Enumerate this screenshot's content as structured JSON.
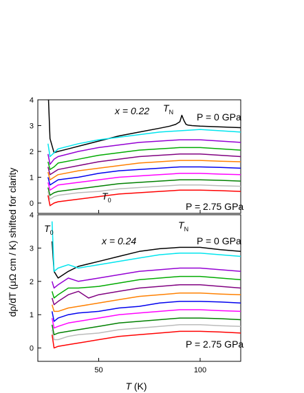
{
  "chart_data": {
    "type": "line",
    "ylabel": "dρ/dT (μΩ cm / K) shifted for clarity",
    "xlabel": "T (K)",
    "xlim": [
      20,
      120
    ],
    "xticks": [
      50,
      100
    ],
    "grid": false,
    "panels": [
      {
        "id": "x022",
        "ylim": [
          -0.4,
          4
        ],
        "yticks": [
          0,
          1,
          2,
          3,
          4
        ],
        "annotations": {
          "composition": "x = 0.22",
          "pressure_top": "P = 0 GPa",
          "pressure_bottom": "P = 2.75 GPa",
          "neel": "T_N",
          "structural": "T_0"
        },
        "series": [
          {
            "color": "#000000",
            "offset": 2.0,
            "x": [
              25,
              26,
              28,
              30,
              35,
              40,
              50,
              60,
              70,
              80,
              85,
              88,
              90,
              91,
              92,
              93,
              94,
              96,
              100,
              110,
              120
            ],
            "y": [
              2.5,
              0.5,
              -0.05,
              0.0,
              0.1,
              0.2,
              0.4,
              0.6,
              0.75,
              0.9,
              0.98,
              1.05,
              1.15,
              1.4,
              1.2,
              1.05,
              1.02,
              1.0,
              0.98,
              0.95,
              0.92
            ]
          },
          {
            "color": "#00e5ee",
            "offset": 1.8,
            "x": [
              25,
              26,
              28,
              30,
              40,
              50,
              60,
              70,
              80,
              90,
              100,
              110,
              120
            ],
            "y": [
              0.5,
              0.0,
              0.15,
              0.3,
              0.5,
              0.65,
              0.75,
              0.85,
              0.95,
              1.0,
              1.05,
              1.0,
              0.95
            ]
          },
          {
            "color": "#9400d3",
            "offset": 1.5,
            "x": [
              25,
              26,
              28,
              30,
              40,
              50,
              60,
              70,
              80,
              90,
              100,
              110,
              120
            ],
            "y": [
              0.4,
              0.0,
              0.2,
              0.3,
              0.5,
              0.65,
              0.75,
              0.85,
              0.9,
              0.95,
              0.95,
              0.9,
              0.85
            ]
          },
          {
            "color": "#00aa00",
            "offset": 1.3,
            "x": [
              25,
              26,
              28,
              30,
              40,
              50,
              60,
              70,
              80,
              90,
              100,
              110,
              120
            ],
            "y": [
              0.3,
              0.0,
              0.1,
              0.25,
              0.4,
              0.55,
              0.65,
              0.75,
              0.8,
              0.85,
              0.85,
              0.8,
              0.75
            ]
          },
          {
            "color": "#800080",
            "offset": 1.1,
            "x": [
              25,
              26,
              28,
              30,
              40,
              50,
              60,
              70,
              80,
              90,
              100,
              110,
              120
            ],
            "y": [
              0.3,
              0.0,
              0.1,
              0.2,
              0.35,
              0.5,
              0.6,
              0.7,
              0.75,
              0.8,
              0.8,
              0.75,
              0.7
            ]
          },
          {
            "color": "#ff8000",
            "offset": 0.9,
            "x": [
              25,
              26,
              28,
              30,
              40,
              50,
              60,
              70,
              80,
              90,
              100,
              110,
              120
            ],
            "y": [
              0.3,
              0.0,
              0.1,
              0.2,
              0.35,
              0.45,
              0.55,
              0.65,
              0.7,
              0.75,
              0.75,
              0.72,
              0.7
            ]
          },
          {
            "color": "#0000ee",
            "offset": 0.7,
            "x": [
              25,
              26,
              28,
              30,
              40,
              50,
              60,
              70,
              80,
              90,
              100,
              110,
              120
            ],
            "y": [
              0.3,
              0.0,
              0.1,
              0.2,
              0.3,
              0.45,
              0.55,
              0.6,
              0.65,
              0.7,
              0.7,
              0.68,
              0.65
            ]
          },
          {
            "color": "#ff00ff",
            "offset": 0.5,
            "x": [
              25,
              26,
              28,
              30,
              40,
              50,
              60,
              70,
              80,
              90,
              100,
              110,
              120
            ],
            "y": [
              0.3,
              0.0,
              0.1,
              0.2,
              0.3,
              0.4,
              0.5,
              0.55,
              0.6,
              0.65,
              0.65,
              0.62,
              0.6
            ]
          },
          {
            "color": "#008000",
            "offset": 0.3,
            "x": [
              25,
              26,
              28,
              30,
              40,
              50,
              60,
              70,
              80,
              90,
              100,
              110,
              120
            ],
            "y": [
              0.3,
              0.0,
              0.1,
              0.15,
              0.25,
              0.35,
              0.45,
              0.5,
              0.55,
              0.6,
              0.6,
              0.58,
              0.55
            ]
          },
          {
            "color": "#bbbbbb",
            "offset": 0.15,
            "x": [
              25,
              26,
              28,
              30,
              40,
              50,
              60,
              70,
              80,
              90,
              100,
              110,
              120
            ],
            "y": [
              0.3,
              0.0,
              0.1,
              0.15,
              0.25,
              0.3,
              0.4,
              0.45,
              0.5,
              0.55,
              0.55,
              0.52,
              0.5
            ]
          },
          {
            "color": "#ff0000",
            "offset": 0.0,
            "x": [
              25,
              26,
              28,
              30,
              40,
              50,
              60,
              70,
              80,
              90,
              100,
              110,
              120
            ],
            "y": [
              0.3,
              -0.1,
              0.0,
              0.05,
              0.15,
              0.25,
              0.35,
              0.4,
              0.45,
              0.5,
              0.5,
              0.48,
              0.45
            ]
          }
        ]
      },
      {
        "id": "x024",
        "ylim": [
          -0.4,
          4
        ],
        "yticks": [
          0,
          1,
          2,
          3,
          4
        ],
        "annotations": {
          "composition": "x = 0.24",
          "pressure_top": "P = 0 GPa",
          "pressure_bottom": "P = 2.75 GPa",
          "neel": "T_N",
          "structural": "T_0"
        },
        "series": [
          {
            "color": "#000000",
            "offset": 2.0,
            "x": [
              27,
              28,
              30,
              35,
              40,
              50,
              60,
              70,
              80,
              90,
              100,
              110,
              120
            ],
            "y": [
              1.2,
              0.3,
              0.1,
              0.3,
              0.45,
              0.6,
              0.75,
              0.9,
              0.98,
              1.02,
              1.02,
              0.95,
              0.9
            ]
          },
          {
            "color": "#00e5ee",
            "offset": 1.8,
            "x": [
              27,
              28,
              30,
              35,
              40,
              50,
              60,
              70,
              80,
              90,
              100,
              110,
              120
            ],
            "y": [
              2.0,
              0.5,
              0.6,
              0.7,
              0.6,
              0.7,
              0.8,
              0.9,
              1.0,
              1.05,
              1.05,
              1.0,
              0.95
            ]
          },
          {
            "color": "#9400d3",
            "offset": 1.5,
            "x": [
              27,
              28,
              30,
              35,
              40,
              50,
              60,
              70,
              80,
              90,
              100,
              110,
              120
            ],
            "y": [
              0.5,
              0.3,
              0.4,
              0.6,
              0.5,
              0.6,
              0.7,
              0.8,
              0.85,
              0.9,
              0.9,
              0.85,
              0.8
            ]
          },
          {
            "color": "#00aa00",
            "offset": 1.3,
            "x": [
              27,
              28,
              30,
              35,
              40,
              50,
              60,
              70,
              80,
              90,
              100,
              110,
              120
            ],
            "y": [
              0.4,
              0.2,
              0.3,
              0.5,
              0.5,
              0.55,
              0.65,
              0.75,
              0.8,
              0.85,
              0.85,
              0.8,
              0.75
            ]
          },
          {
            "color": "#800080",
            "offset": 1.1,
            "x": [
              27,
              28,
              30,
              35,
              40,
              45,
              50,
              60,
              70,
              80,
              90,
              100,
              110,
              120
            ],
            "y": [
              0.4,
              0.2,
              0.3,
              0.5,
              0.6,
              0.4,
              0.5,
              0.6,
              0.7,
              0.75,
              0.8,
              0.8,
              0.75,
              0.7
            ]
          },
          {
            "color": "#ff8000",
            "offset": 0.9,
            "x": [
              27,
              28,
              30,
              35,
              40,
              50,
              60,
              70,
              80,
              90,
              100,
              110,
              120
            ],
            "y": [
              0.4,
              0.2,
              0.2,
              0.3,
              0.35,
              0.45,
              0.55,
              0.65,
              0.7,
              0.75,
              0.75,
              0.72,
              0.7
            ]
          },
          {
            "color": "#0000ee",
            "offset": 0.7,
            "x": [
              27,
              28,
              30,
              35,
              40,
              50,
              60,
              70,
              80,
              90,
              100,
              110,
              120
            ],
            "y": [
              0.4,
              0.1,
              0.2,
              0.3,
              0.35,
              0.4,
              0.5,
              0.55,
              0.65,
              0.7,
              0.7,
              0.68,
              0.65
            ]
          },
          {
            "color": "#ff00ff",
            "offset": 0.5,
            "x": [
              27,
              28,
              30,
              35,
              40,
              50,
              60,
              70,
              80,
              90,
              100,
              110,
              120
            ],
            "y": [
              0.4,
              0.1,
              0.15,
              0.25,
              0.3,
              0.4,
              0.5,
              0.55,
              0.6,
              0.65,
              0.65,
              0.62,
              0.6
            ]
          },
          {
            "color": "#008000",
            "offset": 0.3,
            "x": [
              27,
              28,
              30,
              35,
              40,
              50,
              60,
              70,
              80,
              90,
              100,
              110,
              120
            ],
            "y": [
              0.4,
              0.1,
              0.15,
              0.2,
              0.25,
              0.35,
              0.45,
              0.5,
              0.55,
              0.6,
              0.6,
              0.58,
              0.55
            ]
          },
          {
            "color": "#bbbbbb",
            "offset": 0.15,
            "x": [
              27,
              28,
              30,
              35,
              40,
              50,
              60,
              70,
              80,
              90,
              100,
              110,
              120
            ],
            "y": [
              0.4,
              0.1,
              0.1,
              0.2,
              0.25,
              0.3,
              0.4,
              0.45,
              0.5,
              0.55,
              0.55,
              0.52,
              0.5
            ]
          },
          {
            "color": "#ff0000",
            "offset": 0.0,
            "x": [
              27,
              28,
              30,
              35,
              40,
              50,
              60,
              70,
              80,
              90,
              100,
              110,
              120
            ],
            "y": [
              0.4,
              0.0,
              0.05,
              0.1,
              0.15,
              0.25,
              0.35,
              0.4,
              0.45,
              0.5,
              0.5,
              0.48,
              0.45
            ]
          }
        ]
      }
    ]
  }
}
